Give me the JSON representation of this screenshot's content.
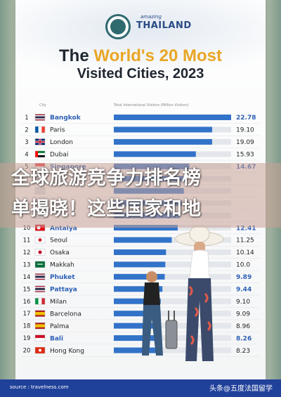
{
  "header": {
    "brand_small": "amazing",
    "brand_large": "THAILAND",
    "title_pre": "The ",
    "title_highlight": "World's 20 Most",
    "title_line2": "Visited Cities, 2023",
    "col_city": "City",
    "col_visitors": "Total International Visitors (Million Visitors)"
  },
  "overlay": {
    "line1": "全球旅游竞争力排名榜",
    "line2": "单揭晓！这些国家和地"
  },
  "footer": {
    "source": "source : travelness.com",
    "watermark": "头条@五度法国留学"
  },
  "colors": {
    "bar": "#3273c9",
    "track": "#e3e6ea",
    "highlight_text": "#2c5fb5",
    "title_accent": "#e9a626",
    "footer": "#20419a"
  },
  "chart_data": {
    "type": "bar",
    "orientation": "horizontal",
    "title": "The World's 20 Most Visited Cities, 2023",
    "xlabel": "Total International Visitors (Million Visitors)",
    "ylabel": "City",
    "xlim": [
      0,
      22.78
    ],
    "rows": [
      {
        "rank": "1",
        "city": "Bangkok",
        "value": 22.78,
        "label": "22.78",
        "flag": "thailand",
        "highlight": true
      },
      {
        "rank": "2",
        "city": "Paris",
        "value": 19.1,
        "label": "19.10",
        "flag": "france",
        "highlight": false
      },
      {
        "rank": "3",
        "city": "London",
        "value": 19.09,
        "label": "19.09",
        "flag": "uk",
        "highlight": false
      },
      {
        "rank": "4",
        "city": "Dubai",
        "value": 15.93,
        "label": "15.93",
        "flag": "uae",
        "highlight": false
      },
      {
        "rank": "5",
        "city": "Singapore",
        "value": 14.67,
        "label": "14.67",
        "flag": "singapore",
        "highlight": true
      },
      {
        "rank": "",
        "city": "",
        "value": 14.05,
        "label": "",
        "flag": "none",
        "highlight": false
      },
      {
        "rank": "",
        "city": "",
        "value": 13.6,
        "label": "",
        "flag": "none",
        "highlight": false
      },
      {
        "rank": "",
        "city": "",
        "value": 13.2,
        "label": "",
        "flag": "none",
        "highlight": false
      },
      {
        "rank": "",
        "city": "",
        "value": 12.8,
        "label": "",
        "flag": "none",
        "highlight": false
      },
      {
        "rank": "10",
        "city": "Antalya",
        "value": 12.41,
        "label": "12.41",
        "flag": "turkey",
        "highlight": true
      },
      {
        "rank": "11",
        "city": "Seoul",
        "value": 11.25,
        "label": "11.25",
        "flag": "korea",
        "highlight": false
      },
      {
        "rank": "12",
        "city": "Osaka",
        "value": 10.14,
        "label": "10.14",
        "flag": "japan",
        "highlight": false
      },
      {
        "rank": "13",
        "city": "Makkah",
        "value": 10.0,
        "label": "10.0",
        "flag": "saudi",
        "highlight": false
      },
      {
        "rank": "14",
        "city": "Phuket",
        "value": 9.89,
        "label": "9.89",
        "flag": "thailand",
        "highlight": true
      },
      {
        "rank": "15",
        "city": "Pattaya",
        "value": 9.44,
        "label": "9.44",
        "flag": "thailand",
        "highlight": true
      },
      {
        "rank": "16",
        "city": "Milan",
        "value": 9.1,
        "label": "9.10",
        "flag": "italy",
        "highlight": false
      },
      {
        "rank": "17",
        "city": "Barcelona",
        "value": 9.09,
        "label": "9.09",
        "flag": "spain",
        "highlight": false
      },
      {
        "rank": "18",
        "city": "Palma",
        "value": 8.96,
        "label": "8.96",
        "flag": "spain",
        "highlight": false
      },
      {
        "rank": "19",
        "city": "Bali",
        "value": 8.26,
        "label": "8.26",
        "flag": "indonesia",
        "highlight": true
      },
      {
        "rank": "20",
        "city": "Hong Kong",
        "value": 8.23,
        "label": "8.23",
        "flag": "hongkong",
        "highlight": false
      }
    ]
  }
}
